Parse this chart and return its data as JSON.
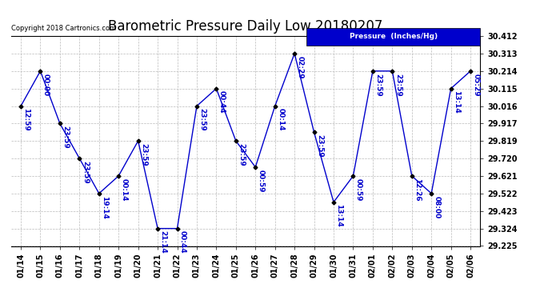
{
  "title": "Barometric Pressure Daily Low 20180207",
  "copyright": "Copyright 2018 Cartronics.com",
  "legend_label": "Pressure  (Inches/Hg)",
  "ylim": [
    29.225,
    30.412
  ],
  "yticks": [
    29.225,
    29.324,
    29.423,
    29.522,
    29.621,
    29.72,
    29.819,
    29.917,
    30.016,
    30.115,
    30.214,
    30.313,
    30.412
  ],
  "dates": [
    "01/14",
    "01/15",
    "01/16",
    "01/17",
    "01/18",
    "01/19",
    "01/20",
    "01/21",
    "01/22",
    "01/23",
    "01/24",
    "01/25",
    "01/26",
    "01/27",
    "01/28",
    "01/29",
    "01/30",
    "01/31",
    "02/01",
    "02/02",
    "02/03",
    "02/04",
    "02/05",
    "02/06"
  ],
  "values": [
    30.016,
    30.214,
    29.917,
    29.72,
    29.522,
    29.621,
    29.819,
    29.324,
    29.324,
    30.016,
    30.115,
    29.819,
    29.671,
    30.016,
    30.313,
    29.868,
    29.473,
    29.621,
    30.214,
    30.214,
    29.621,
    29.522,
    30.115,
    30.214
  ],
  "time_labels": [
    "12:59",
    "00:00",
    "23:59",
    "23:59",
    "19:14",
    "00:14",
    "23:59",
    "21:14",
    "00:44",
    "23:59",
    "00:44",
    "23:59",
    "00:59",
    "00:14",
    "02:29",
    "23:59",
    "13:14",
    "00:59",
    "23:59",
    "23:59",
    "12:26",
    "08:00",
    "13:14",
    "05:29"
  ],
  "line_color": "#0000CC",
  "bg_color": "#ffffff",
  "grid_color": "#bbbbbb",
  "title_fontsize": 12,
  "tick_fontsize": 7,
  "annot_fontsize": 6.5,
  "legend_bg": "#0000CC",
  "legend_fg": "#ffffff"
}
